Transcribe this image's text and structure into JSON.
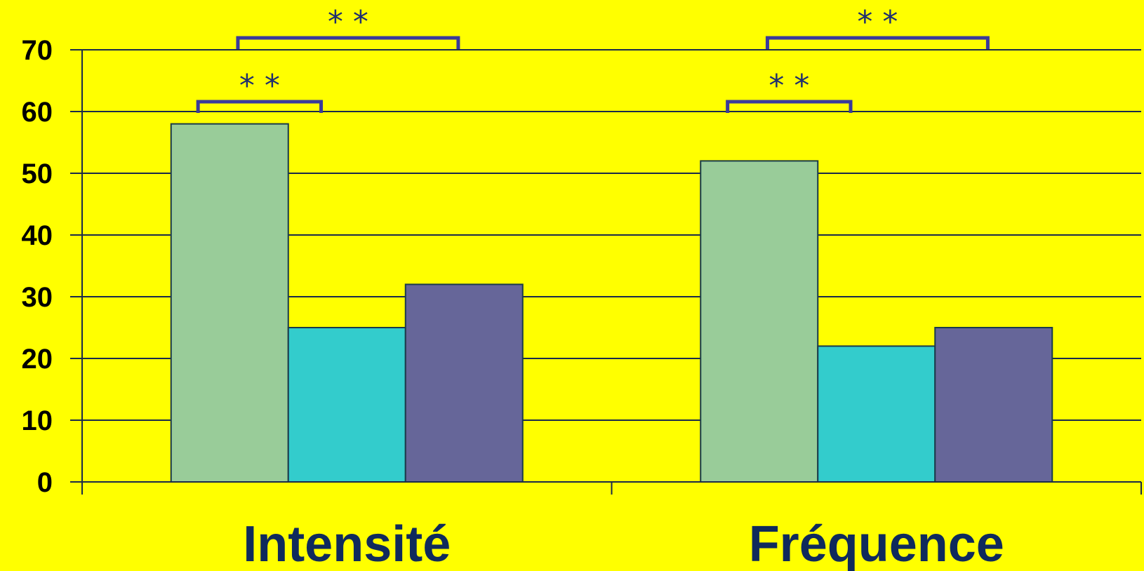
{
  "chart_data": {
    "type": "bar",
    "categories": [
      "Intensité",
      "Fréquence"
    ],
    "series": [
      {
        "values": [
          58,
          52
        ],
        "color": "#99cc99"
      },
      {
        "values": [
          25,
          22
        ],
        "color": "#33cccc"
      },
      {
        "values": [
          32,
          25
        ],
        "color": "#666699"
      }
    ],
    "ylim": [
      0,
      70
    ],
    "yticks": [
      0,
      10,
      20,
      30,
      40,
      50,
      60,
      70
    ],
    "grid": true,
    "background": "#ffff00",
    "significance": [
      {
        "category": 0,
        "from_series": 0,
        "to_series": 1,
        "label": "* *"
      },
      {
        "category": 0,
        "from_series": 0,
        "to_series": 2,
        "label": "* *"
      },
      {
        "category": 1,
        "from_series": 0,
        "to_series": 1,
        "label": "* *"
      },
      {
        "category": 1,
        "from_series": 0,
        "to_series": 2,
        "label": "* *"
      }
    ]
  }
}
